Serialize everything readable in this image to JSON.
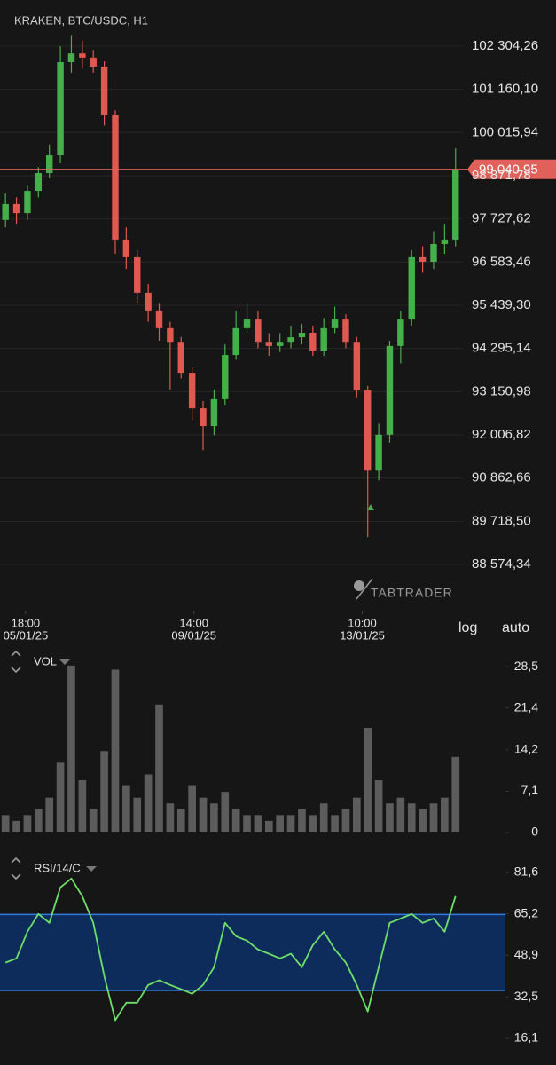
{
  "header": {
    "symbol": "KRAKEN, BTC/USDC, H1"
  },
  "controls": {
    "log": "log",
    "auto": "auto"
  },
  "watermark": "TABTRADER",
  "chart_data": [
    {
      "type": "candlestick",
      "x": [
        "05/01/25 04:00",
        "05/01/25 10:00",
        "05/01/25 16:00",
        "05/01/25 22:00",
        "06/01/25 04:00",
        "06/01/25 10:00",
        "06/01/25 16:00",
        "06/01/25 22:00",
        "07/01/25 04:00",
        "07/01/25 10:00",
        "07/01/25 16:00",
        "07/01/25 22:00",
        "08/01/25 04:00",
        "08/01/25 10:00",
        "08/01/25 16:00",
        "08/01/25 22:00",
        "09/01/25 04:00",
        "09/01/25 10:00",
        "09/01/25 16:00",
        "09/01/25 22:00",
        "10/01/25 04:00",
        "10/01/25 10:00",
        "10/01/25 16:00",
        "10/01/25 22:00",
        "11/01/25 04:00",
        "11/01/25 10:00",
        "11/01/25 16:00",
        "11/01/25 22:00",
        "12/01/25 04:00",
        "12/01/25 10:00",
        "12/01/25 16:00",
        "12/01/25 22:00",
        "13/01/25 04:00",
        "13/01/25 10:00",
        "13/01/25 16:00",
        "13/01/25 22:00",
        "14/01/25 04:00",
        "14/01/25 10:00",
        "14/01/25 16:00",
        "14/01/25 22:00",
        "15/01/25 04:00",
        "15/01/25 10:00"
      ],
      "open": [
        97700,
        98120,
        97880,
        98470,
        98940,
        99410,
        101880,
        102110,
        102000,
        101760,
        100470,
        97180,
        96710,
        95770,
        95300,
        94830,
        94470,
        93650,
        92710,
        92240,
        92950,
        94120,
        94830,
        95060,
        94470,
        94360,
        94470,
        94590,
        94710,
        94240,
        94830,
        95060,
        94470,
        93180,
        91060,
        92010,
        94360,
        95060,
        96710,
        96590,
        97060,
        97180
      ],
      "high": [
        98400,
        98300,
        98600,
        99100,
        99700,
        102300,
        102600,
        102450,
        102200,
        101900,
        100600,
        97500,
        96900,
        96000,
        95500,
        95000,
        94600,
        93800,
        92900,
        93200,
        94400,
        95300,
        95500,
        95300,
        94700,
        94700,
        94900,
        94950,
        94900,
        95100,
        95400,
        95200,
        94600,
        93300,
        92300,
        94500,
        95300,
        96900,
        97000,
        97400,
        97600,
        99600
      ],
      "low": [
        97500,
        97600,
        97700,
        98300,
        98800,
        99200,
        101600,
        101700,
        101600,
        100200,
        96800,
        96400,
        95500,
        95000,
        94500,
        93200,
        93500,
        92400,
        91600,
        92000,
        92800,
        94000,
        94700,
        94300,
        94100,
        94200,
        94300,
        94400,
        94100,
        94100,
        94700,
        94300,
        93000,
        89300,
        90800,
        91800,
        93900,
        94900,
        96300,
        96400,
        96800,
        97000
      ],
      "close": [
        98120,
        97880,
        98470,
        98940,
        99410,
        101880,
        102110,
        102000,
        101760,
        100470,
        97180,
        96710,
        95770,
        95300,
        94830,
        94470,
        93650,
        92710,
        92240,
        92950,
        94120,
        94830,
        95060,
        94470,
        94360,
        94470,
        94590,
        94710,
        94240,
        94830,
        95060,
        94470,
        93180,
        91060,
        92010,
        94360,
        95060,
        96710,
        96590,
        97060,
        97180,
        99040
      ],
      "up_color": "#43b04a",
      "down_color": "#e0584f",
      "xlim": [
        "05/01/25 04:00",
        "15/01/25 17:00"
      ],
      "xticks": [
        {
          "value": "05/01/25 18:00",
          "label": "18:00",
          "sublabel": "05/01/25"
        },
        {
          "value": "09/01/25 14:00",
          "label": "14:00",
          "sublabel": "09/01/25"
        },
        {
          "value": "13/01/25 10:00",
          "label": "10:00",
          "sublabel": "13/01/25"
        }
      ],
      "ylim": [
        87540,
        102820
      ],
      "yticks": [
        {
          "value": 102304.26,
          "label": "102 304,26"
        },
        {
          "value": 101160.1,
          "label": "101 160,10"
        },
        {
          "value": 100015.94,
          "label": "100 015,94"
        },
        {
          "value": 98871.78,
          "label": "98 871,78"
        },
        {
          "value": 97727.62,
          "label": "97 727,62"
        },
        {
          "value": 96583.46,
          "label": "96 583,46"
        },
        {
          "value": 95439.3,
          "label": "95 439,30"
        },
        {
          "value": 94295.14,
          "label": "94 295,14"
        },
        {
          "value": 93150.98,
          "label": "93 150,98"
        },
        {
          "value": 92006.82,
          "label": "92 006,82"
        },
        {
          "value": 90862.66,
          "label": "90 862,66"
        },
        {
          "value": 89718.5,
          "label": "89 718,50"
        },
        {
          "value": 88574.34,
          "label": "88 574,34"
        }
      ],
      "current_price": {
        "value": 99040.95,
        "label": "99 040,95",
        "color": "#e0605a"
      },
      "grid": true
    },
    {
      "type": "bar",
      "title": "VOL",
      "color": "#5c5c5c",
      "values": [
        3,
        2,
        3,
        4,
        6,
        12,
        28.7,
        9,
        4,
        14,
        28,
        8,
        6,
        10,
        22,
        5,
        4,
        8,
        6,
        5,
        7,
        4,
        3,
        3,
        2,
        3,
        3,
        4,
        3,
        5,
        3,
        4,
        6,
        18,
        9,
        5,
        6,
        5,
        4,
        5,
        6,
        13
      ],
      "ylim": [
        0,
        29.6
      ],
      "yticks": [
        {
          "value": 28.5,
          "label": "28,5"
        },
        {
          "value": 21.4,
          "label": "21,4"
        },
        {
          "value": 14.2,
          "label": "14,2"
        },
        {
          "value": 7.1,
          "label": "7,1"
        },
        0
      ]
    },
    {
      "type": "line",
      "title": "RSI/14/C",
      "color": "#6fe06a",
      "band": [
        35,
        65
      ],
      "band_color": "#0d2c5c",
      "band_line_color": "#2f7be0",
      "values": [
        46.0,
        47.7,
        58.2,
        65.2,
        61.7,
        75.7,
        79.2,
        72.2,
        61.7,
        40.7,
        23.3,
        30.2,
        30.2,
        37.2,
        39.0,
        37.2,
        35.5,
        33.7,
        37.2,
        44.2,
        61.7,
        56.4,
        54.7,
        51.2,
        49.5,
        47.7,
        49.5,
        44.2,
        52.9,
        58.2,
        51.2,
        46.0,
        37.2,
        26.7,
        44.2,
        61.7,
        63.4,
        65.2,
        61.7,
        63.4,
        58.2,
        72.2
      ],
      "ylim": [
        9.1,
        84.4
      ],
      "yticks": [
        {
          "value": 81.6,
          "label": "81,6"
        },
        {
          "value": 65.2,
          "label": "65,2"
        },
        {
          "value": 48.9,
          "label": "48,9"
        },
        {
          "value": 32.5,
          "label": "32,5"
        },
        {
          "value": 16.1,
          "label": "16,1"
        }
      ]
    }
  ]
}
